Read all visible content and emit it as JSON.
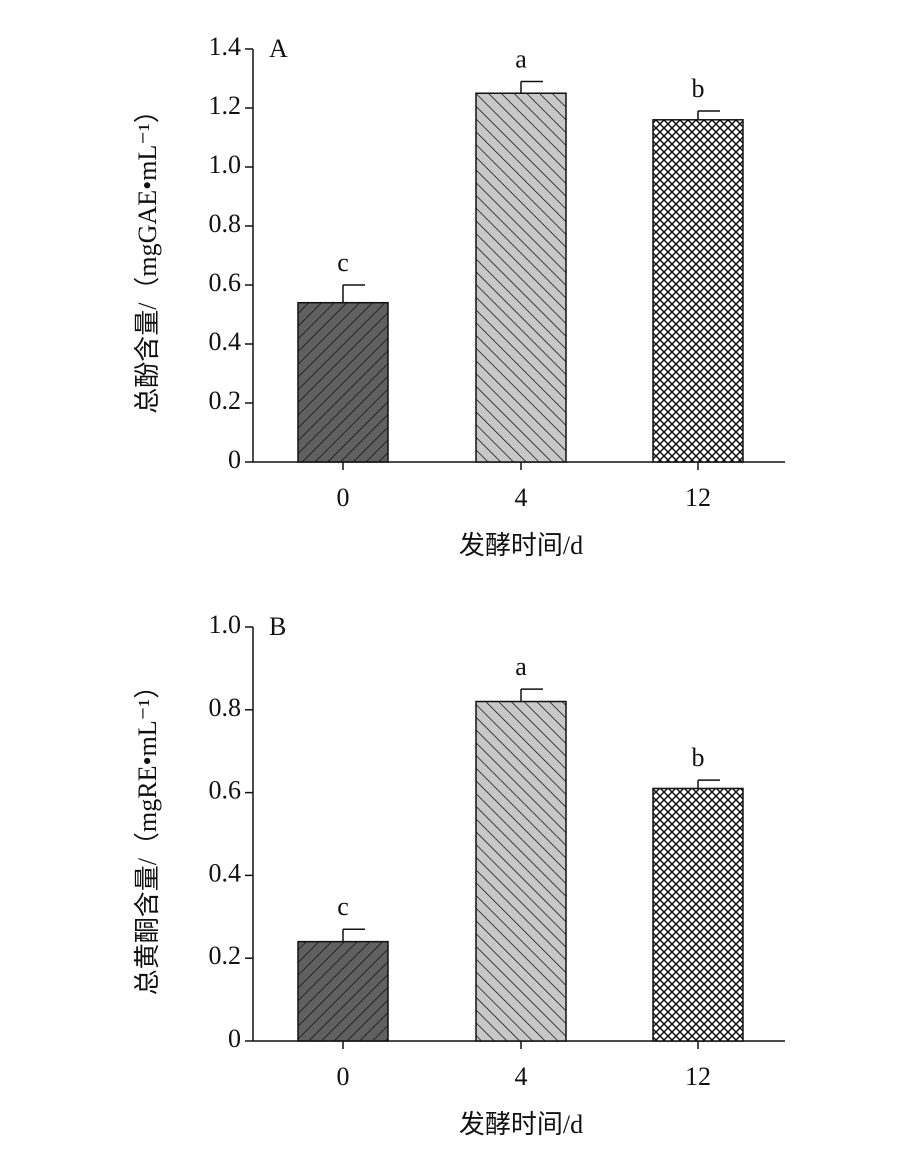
{
  "chart_data": [
    {
      "type": "bar",
      "panel": "A",
      "y_label": "总酚含量/（mgGAE•mL⁻¹）",
      "x_label": "发酵时间/d",
      "categories": [
        "0",
        "4",
        "12"
      ],
      "values": [
        0.54,
        1.25,
        1.16
      ],
      "errors": [
        0.06,
        0.04,
        0.03
      ],
      "annotations": [
        "c",
        "a",
        "b"
      ],
      "colors": [
        "#606060",
        "#c8c8c8",
        "#ffffff"
      ],
      "ylim": [
        0,
        1.4
      ],
      "yticks": [
        0,
        0.2,
        0.4,
        0.6,
        0.8,
        {
          "value": 1,
          "label": "1.0"
        },
        1.2,
        1.4
      ]
    },
    {
      "type": "bar",
      "panel": "B",
      "y_label": "总黄酮含量/（mgRE•mL⁻¹）",
      "x_label": "发酵时间/d",
      "categories": [
        "0",
        "4",
        "12"
      ],
      "values": [
        0.24,
        0.82,
        0.61
      ],
      "errors": [
        0.03,
        0.03,
        0.02
      ],
      "annotations": [
        "c",
        "a",
        "b"
      ],
      "colors": [
        "#606060",
        "#c8c8c8",
        "#ffffff"
      ],
      "ylim": [
        0,
        1
      ],
      "yticks": [
        0,
        0.2,
        0.4,
        0.6,
        0.8,
        {
          "value": 1,
          "label": "1.0"
        }
      ]
    }
  ]
}
